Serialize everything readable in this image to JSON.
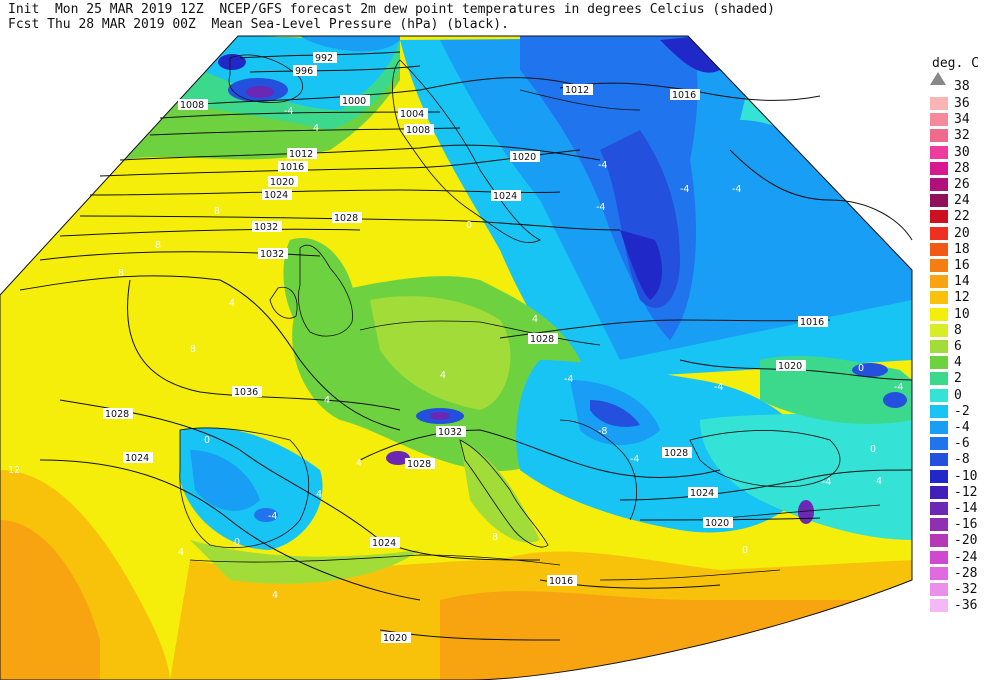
{
  "header": {
    "line1": "Init  Mon 25 MAR 2019 12Z  NCEP/GFS forecast 2m dew point temperatures in degrees Celcius (shaded)",
    "line2": "Fcst Thu 28 MAR 2019 00Z  Mean Sea-Level Pressure (hPa) (black)."
  },
  "legend": {
    "title": "deg. C",
    "top_label": "38",
    "entries": [
      {
        "label": "36",
        "color": "#f9b4b4"
      },
      {
        "label": "34",
        "color": "#f58a9c"
      },
      {
        "label": "32",
        "color": "#f06a8c"
      },
      {
        "label": "30",
        "color": "#ee3c9e"
      },
      {
        "label": "28",
        "color": "#d81890"
      },
      {
        "label": "26",
        "color": "#b0107a"
      },
      {
        "label": "24",
        "color": "#90105a"
      },
      {
        "label": "22",
        "color": "#cc1020"
      },
      {
        "label": "20",
        "color": "#ee3020"
      },
      {
        "label": "18",
        "color": "#f05a14"
      },
      {
        "label": "16",
        "color": "#f47e12"
      },
      {
        "label": "14",
        "color": "#f7a410"
      },
      {
        "label": "12",
        "color": "#f8c20a"
      },
      {
        "label": "10",
        "color": "#f4ee0a"
      },
      {
        "label": "8",
        "color": "#d8ec28"
      },
      {
        "label": "6",
        "color": "#a2dc38"
      },
      {
        "label": "4",
        "color": "#6ed240"
      },
      {
        "label": "2",
        "color": "#3cd88c"
      },
      {
        "label": "0",
        "color": "#34e2d6"
      },
      {
        "label": "-2",
        "color": "#18c4f4"
      },
      {
        "label": "-4",
        "color": "#189ef4"
      },
      {
        "label": "-6",
        "color": "#2074ee"
      },
      {
        "label": "-8",
        "color": "#2450de"
      },
      {
        "label": "-10",
        "color": "#2028c8"
      },
      {
        "label": "-12",
        "color": "#4020b8"
      },
      {
        "label": "-14",
        "color": "#6a28b4"
      },
      {
        "label": "-16",
        "color": "#9030b0"
      },
      {
        "label": "-20",
        "color": "#b438b8"
      },
      {
        "label": "-24",
        "color": "#d048d0"
      },
      {
        "label": "-28",
        "color": "#e06ae0"
      },
      {
        "label": "-32",
        "color": "#ea90ea"
      },
      {
        "label": "-36",
        "color": "#f4b8f4"
      }
    ]
  },
  "isobar_labels": [
    "992",
    "996",
    "1000",
    "1004",
    "1008",
    "1008",
    "1012",
    "1016",
    "1020",
    "1024",
    "1028",
    "1032",
    "1032",
    "1036",
    "1028",
    "1024",
    "1024",
    "1028",
    "1032",
    "1028",
    "1012",
    "1016",
    "1020",
    "1024",
    "1024",
    "1016",
    "1020",
    "1016",
    "1020",
    "1028",
    "1020",
    "1028"
  ],
  "temp_labels": [
    "-4",
    "4",
    "8",
    "8",
    "8",
    "0",
    "4",
    "4",
    "4",
    "0",
    "-4",
    "-4",
    "-4",
    "-4",
    "-4",
    "-4",
    "4",
    "8",
    "12",
    "4",
    "0",
    "-4",
    "0",
    "4",
    "8",
    "4",
    "0",
    "4",
    "4",
    "-4",
    "0",
    "-4",
    "-8",
    "-4"
  ]
}
